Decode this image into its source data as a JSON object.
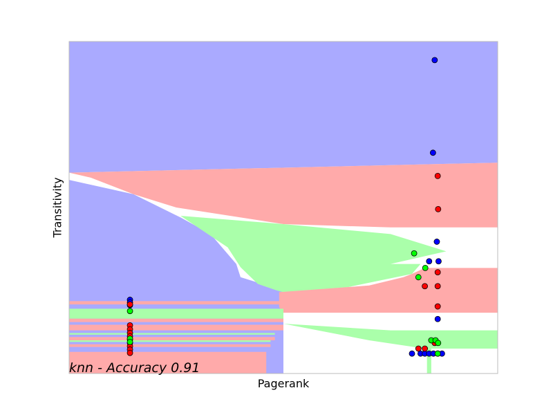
{
  "chart_data": {
    "type": "scatter",
    "title": "",
    "xlabel": "Pagerank",
    "ylabel": "Transitivity",
    "annotation": "knn - Accuracy 0.91",
    "xlim": [
      0,
      1
    ],
    "ylim": [
      0,
      1
    ],
    "grid": false,
    "ticks_shown": false,
    "legend": null,
    "region_colors": {
      "blue": "#aaaaff",
      "red": "#ffaaaa",
      "green": "#aaffaa"
    },
    "point_colors": {
      "blue": "#0000ff",
      "red": "#ff0000",
      "green": "#00ff00"
    },
    "background_regions": [
      {
        "class": "blue",
        "polygon": [
          [
            0,
            1
          ],
          [
            1,
            1
          ],
          [
            1,
            0.635
          ],
          [
            0,
            0.605
          ]
        ]
      },
      {
        "class": "red",
        "polygon": [
          [
            0,
            0.605
          ],
          [
            0.05,
            0.59
          ],
          [
            0.15,
            0.54
          ],
          [
            0.25,
            0.5
          ],
          [
            0.5,
            0.45
          ],
          [
            0.75,
            0.44
          ],
          [
            1,
            0.44
          ],
          [
            1,
            0.635
          ]
        ]
      },
      {
        "class": "blue",
        "polygon": [
          [
            0,
            0.583
          ],
          [
            0.15,
            0.54
          ],
          [
            0.26,
            0.47
          ],
          [
            0.33,
            0.42
          ],
          [
            0.39,
            0.33
          ],
          [
            0.4,
            0.29
          ],
          [
            0.5,
            0.25
          ],
          [
            0.5,
            0
          ],
          [
            0,
            0
          ]
        ]
      },
      {
        "class": "green",
        "polygon": [
          [
            0.26,
            0.475
          ],
          [
            0.5,
            0.45
          ],
          [
            0.75,
            0.42
          ],
          [
            0.88,
            0.368
          ],
          [
            0.75,
            0.33
          ],
          [
            0.82,
            0.33
          ],
          [
            0.8,
            0.3
          ],
          [
            0.65,
            0.26
          ],
          [
            0.5,
            0.245
          ],
          [
            0.485,
            0.25
          ],
          [
            0.44,
            0.27
          ],
          [
            0.4,
            0.32
          ],
          [
            0.37,
            0.38
          ]
        ]
      },
      {
        "class": "red",
        "polygon": [
          [
            0.49,
            0.245
          ],
          [
            0.7,
            0.265
          ],
          [
            0.78,
            0.29
          ],
          [
            0.8,
            0.3
          ],
          [
            0.83,
            0.318
          ],
          [
            1,
            0.318
          ],
          [
            1,
            0.183
          ],
          [
            0.5,
            0.183
          ],
          [
            0.49,
            0.2
          ]
        ]
      },
      {
        "class": "green",
        "polygon": [
          [
            0.5,
            0.15
          ],
          [
            0.75,
            0.13
          ],
          [
            1,
            0.13
          ],
          [
            1,
            0.075
          ],
          [
            0.83,
            0.075
          ],
          [
            0.7,
            0.1
          ]
        ]
      },
      {
        "class": "green",
        "polygon": [
          [
            0.835,
            0.075
          ],
          [
            0.845,
            0.075
          ],
          [
            0.845,
            0
          ],
          [
            0.835,
            0
          ]
        ]
      },
      {
        "class": "red",
        "polygon": [
          [
            0,
            0.218
          ],
          [
            0.5,
            0.218
          ],
          [
            0.5,
            0.208
          ],
          [
            0,
            0.208
          ]
        ]
      },
      {
        "class": "green",
        "polygon": [
          [
            0,
            0.195
          ],
          [
            0.5,
            0.195
          ],
          [
            0.5,
            0.165
          ],
          [
            0,
            0.165
          ]
        ]
      },
      {
        "class": "red",
        "polygon": [
          [
            0,
            0.165
          ],
          [
            0.5,
            0.165
          ],
          [
            0.5,
            0.155
          ],
          [
            0,
            0.155
          ]
        ]
      },
      {
        "class": "red",
        "polygon": [
          [
            0,
            0.147
          ],
          [
            0.5,
            0.147
          ],
          [
            0.5,
            0.13
          ],
          [
            0,
            0.13
          ]
        ]
      },
      {
        "class": "green",
        "polygon": [
          [
            0,
            0.122
          ],
          [
            0.48,
            0.122
          ],
          [
            0.48,
            0.117
          ],
          [
            0,
            0.117
          ]
        ]
      },
      {
        "class": "red",
        "polygon": [
          [
            0,
            0.11
          ],
          [
            0.48,
            0.11
          ],
          [
            0.48,
            0.1
          ],
          [
            0,
            0.1
          ]
        ]
      },
      {
        "class": "green",
        "polygon": [
          [
            0,
            0.1
          ],
          [
            0.47,
            0.1
          ],
          [
            0.47,
            0.095
          ],
          [
            0,
            0.095
          ]
        ]
      },
      {
        "class": "red",
        "polygon": [
          [
            0,
            0.088
          ],
          [
            0.47,
            0.088
          ],
          [
            0.47,
            0.08
          ],
          [
            0,
            0.08
          ]
        ]
      },
      {
        "class": "red",
        "polygon": [
          [
            0,
            0.065
          ],
          [
            0.46,
            0.065
          ],
          [
            0.46,
            0
          ],
          [
            0,
            0
          ]
        ]
      }
    ],
    "series": [
      {
        "class": "blue",
        "points": [
          [
            0.853,
            0.944
          ],
          [
            0.849,
            0.665
          ],
          [
            0.858,
            0.397
          ],
          [
            0.84,
            0.338
          ],
          [
            0.862,
            0.338
          ],
          [
            0.86,
            0.164
          ],
          [
            0.142,
            0.222
          ],
          [
            0.142,
            0.214
          ],
          [
            0.142,
            0.206
          ],
          [
            0.8,
            0.06
          ],
          [
            0.82,
            0.06
          ],
          [
            0.83,
            0.06
          ],
          [
            0.84,
            0.06
          ],
          [
            0.85,
            0.06
          ],
          [
            0.86,
            0.06
          ],
          [
            0.87,
            0.06
          ]
        ]
      },
      {
        "class": "red",
        "points": [
          [
            0.86,
            0.595
          ],
          [
            0.861,
            0.495
          ],
          [
            0.86,
            0.305
          ],
          [
            0.86,
            0.263
          ],
          [
            0.86,
            0.202
          ],
          [
            0.83,
            0.263
          ],
          [
            0.142,
            0.208
          ],
          [
            0.142,
            0.145
          ],
          [
            0.142,
            0.133
          ],
          [
            0.142,
            0.122
          ],
          [
            0.142,
            0.112
          ],
          [
            0.142,
            0.102
          ],
          [
            0.142,
            0.092
          ],
          [
            0.142,
            0.082
          ],
          [
            0.142,
            0.072
          ],
          [
            0.142,
            0.062
          ],
          [
            0.815,
            0.075
          ],
          [
            0.83,
            0.075
          ],
          [
            0.853,
            0.092
          ]
        ]
      },
      {
        "class": "green",
        "points": [
          [
            0.805,
            0.362
          ],
          [
            0.831,
            0.318
          ],
          [
            0.815,
            0.29
          ],
          [
            0.142,
            0.188
          ],
          [
            0.142,
            0.105
          ],
          [
            0.142,
            0.095
          ],
          [
            0.845,
            0.1
          ],
          [
            0.855,
            0.1
          ],
          [
            0.861,
            0.092
          ],
          [
            0.86,
            0.06
          ]
        ]
      }
    ]
  }
}
